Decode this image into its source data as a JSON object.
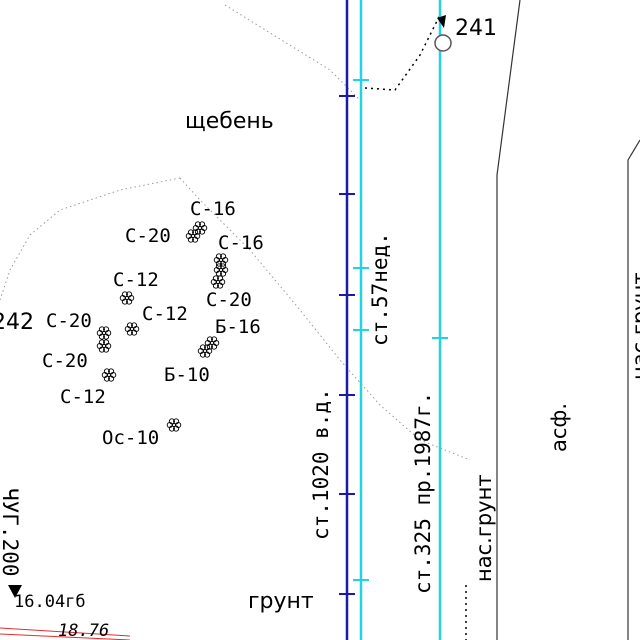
{
  "map": {
    "point_241": "241",
    "point_242": "242",
    "surface_gravel": "щебень",
    "surface_soil": "грунт",
    "surface_asphalt": "асф.",
    "surface_bulk_soil": "нас.грунт",
    "surface_bulk_soil_right": "нас.грунт",
    "pipe_1020": "ст.1020 в.д.",
    "pipe_57": "ст.57нед.",
    "pipe_325": "ст.325 пр.1987г.",
    "elevation_1": "16.04гб",
    "elevation_2": "18.76",
    "corner_text": "ЧУГ.200",
    "trees": [
      {
        "label": "С-16"
      },
      {
        "label": "С-20"
      },
      {
        "label": "С-16"
      },
      {
        "label": "С-12"
      },
      {
        "label": "С-20"
      },
      {
        "label": "С-20"
      },
      {
        "label": "С-12"
      },
      {
        "label": "Б-16"
      },
      {
        "label": "С-20"
      },
      {
        "label": "Б-10"
      },
      {
        "label": "С-12"
      },
      {
        "label": "Ос-10"
      }
    ],
    "colors": {
      "pipe_dark_blue": "#1a1aa6",
      "pipe_cyan": "#22d3e0",
      "boundary_gray": "#9a9a9a",
      "road_edge": "#333333",
      "red_line": "#e03030"
    }
  }
}
